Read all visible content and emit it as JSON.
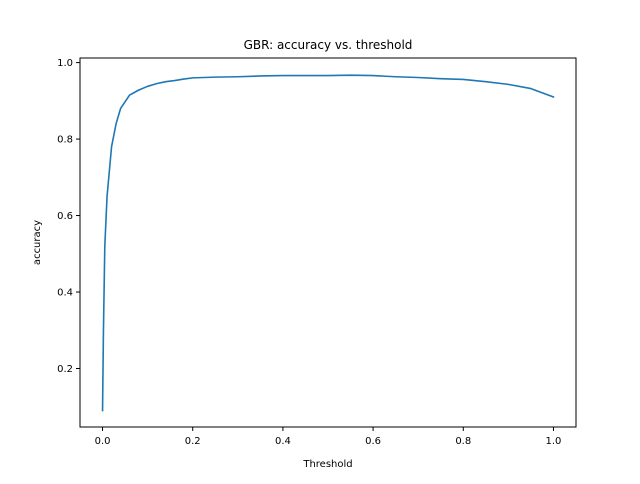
{
  "chart_data": {
    "type": "line",
    "title": "GBR: accuracy vs. threshold",
    "xlabel": "Threshold",
    "ylabel": "accuracy",
    "xlim": [
      -0.05,
      1.05
    ],
    "ylim": [
      0.047,
      1.012
    ],
    "xticks": [
      0.0,
      0.2,
      0.4,
      0.6,
      0.8,
      1.0
    ],
    "xtick_labels": [
      "0.0",
      "0.2",
      "0.4",
      "0.6",
      "0.8",
      "1.0"
    ],
    "yticks": [
      0.2,
      0.4,
      0.6,
      0.8,
      1.0
    ],
    "ytick_labels": [
      "0.2",
      "0.4",
      "0.6",
      "0.8",
      "1.0"
    ],
    "grid": false,
    "legend": null,
    "series": [
      {
        "color": "#1f77b4",
        "x": [
          0.0,
          0.002,
          0.005,
          0.01,
          0.02,
          0.03,
          0.04,
          0.06,
          0.08,
          0.1,
          0.12,
          0.14,
          0.16,
          0.18,
          0.2,
          0.25,
          0.3,
          0.35,
          0.4,
          0.45,
          0.5,
          0.55,
          0.6,
          0.65,
          0.7,
          0.75,
          0.8,
          0.85,
          0.9,
          0.95,
          1.0
        ],
        "y": [
          0.09,
          0.3,
          0.52,
          0.65,
          0.78,
          0.84,
          0.88,
          0.915,
          0.928,
          0.938,
          0.945,
          0.95,
          0.953,
          0.957,
          0.96,
          0.962,
          0.963,
          0.965,
          0.966,
          0.966,
          0.966,
          0.967,
          0.966,
          0.963,
          0.961,
          0.958,
          0.956,
          0.95,
          0.943,
          0.932,
          0.91
        ]
      }
    ]
  }
}
